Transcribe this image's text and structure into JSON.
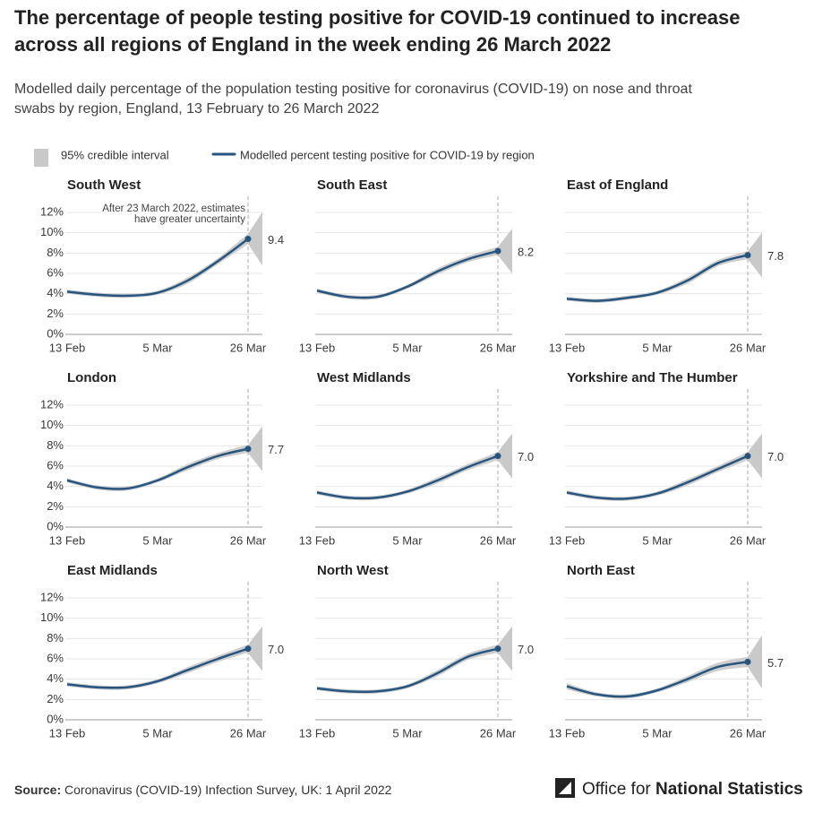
{
  "header": {
    "title": [
      "The percentage of people testing positive for COVID-19 continued to increase",
      "across all regions of England in the week ending 26 March 2022"
    ],
    "subtitle": [
      "Modelled daily percentage of the population testing positive for coronavirus (COVID-19) on nose and throat",
      "swabs by region, England, 13 February to 26 March 2022"
    ]
  },
  "legend": {
    "interval": "95% credible interval",
    "line": "Modelled percent testing positive for COVID-19 by region"
  },
  "footer": {
    "source_label": "Source:",
    "source": "Coronavirus (COVID-19) Infection Survey, UK: 1 April 2022",
    "logo_light": "Office for",
    "logo_bold": "National Statistics"
  },
  "chart_data": [
    {
      "type": "line",
      "title": "South West",
      "categories": [
        "13 Feb",
        null,
        null,
        "5 Mar",
        null,
        null,
        "26 Mar"
      ],
      "values": [
        4.2,
        3.9,
        3.8,
        4.1,
        5.3,
        7.2,
        9.4
      ],
      "value_labels": [
        null,
        null,
        null,
        null,
        null,
        null,
        "9.4"
      ],
      "lower": [
        4.0,
        3.7,
        3.6,
        3.9,
        5.0,
        6.9,
        8.9
      ],
      "upper": [
        4.4,
        4.1,
        4.0,
        4.3,
        5.6,
        7.5,
        9.9
      ],
      "color": "#27557f",
      "interval_color": "#c9c9c9",
      "ylim": [
        0,
        12
      ],
      "yticks": [
        {
          "value": 0,
          "label": "0%"
        },
        {
          "value": 2,
          "label": "2%"
        },
        {
          "value": 4,
          "label": "4%"
        },
        {
          "value": 6,
          "label": "6%"
        },
        {
          "value": 8,
          "label": "8%"
        },
        {
          "value": 10,
          "label": "10%"
        },
        {
          "value": 12,
          "label": "12%"
        }
      ],
      "annotation": [
        "After 23 March 2022, estimates",
        "have greater uncertainty"
      ]
    },
    {
      "type": "line",
      "title": "South East",
      "categories": [
        "13 Feb",
        null,
        null,
        "5 Mar",
        null,
        null,
        "26 Mar"
      ],
      "values": [
        4.3,
        3.7,
        3.7,
        4.7,
        6.2,
        7.4,
        8.2
      ],
      "value_labels": [
        null,
        null,
        null,
        null,
        null,
        null,
        "8.2"
      ],
      "lower": [
        4.1,
        3.5,
        3.5,
        4.5,
        5.9,
        7.1,
        7.8
      ],
      "upper": [
        4.5,
        3.9,
        3.9,
        4.9,
        6.5,
        7.7,
        8.6
      ],
      "color": "#27557f",
      "interval_color": "#c9c9c9",
      "ylim": [
        0,
        12
      ],
      "yticks": [
        0,
        2,
        4,
        6,
        8,
        10,
        12
      ]
    },
    {
      "type": "line",
      "title": "East of England",
      "categories": [
        "13 Feb",
        null,
        null,
        "5 Mar",
        null,
        null,
        "26 Mar"
      ],
      "values": [
        3.5,
        3.3,
        3.6,
        4.1,
        5.3,
        7.0,
        7.8
      ],
      "value_labels": [
        null,
        null,
        null,
        null,
        null,
        null,
        "7.8"
      ],
      "lower": [
        3.3,
        3.1,
        3.4,
        3.9,
        5.0,
        6.7,
        7.4
      ],
      "upper": [
        3.7,
        3.5,
        3.8,
        4.3,
        5.6,
        7.3,
        8.2
      ],
      "color": "#27557f",
      "interval_color": "#c9c9c9",
      "ylim": [
        0,
        12
      ],
      "yticks": [
        0,
        2,
        4,
        6,
        8,
        10,
        12
      ]
    },
    {
      "type": "line",
      "title": "London",
      "categories": [
        "13 Feb",
        null,
        null,
        "5 Mar",
        null,
        null,
        "26 Mar"
      ],
      "values": [
        4.6,
        3.9,
        3.8,
        4.6,
        5.9,
        7.0,
        7.7
      ],
      "value_labels": [
        null,
        null,
        null,
        null,
        null,
        null,
        "7.7"
      ],
      "lower": [
        4.4,
        3.7,
        3.6,
        4.4,
        5.6,
        6.7,
        7.3
      ],
      "upper": [
        4.8,
        4.1,
        4.0,
        4.8,
        6.2,
        7.3,
        8.1
      ],
      "color": "#27557f",
      "interval_color": "#c9c9c9",
      "ylim": [
        0,
        12
      ],
      "yticks": [
        {
          "value": 0,
          "label": "0%"
        },
        {
          "value": 2,
          "label": "2%"
        },
        {
          "value": 4,
          "label": "4%"
        },
        {
          "value": 6,
          "label": "6%"
        },
        {
          "value": 8,
          "label": "8%"
        },
        {
          "value": 10,
          "label": "10%"
        },
        {
          "value": 12,
          "label": "12%"
        }
      ]
    },
    {
      "type": "line",
      "title": "West Midlands",
      "categories": [
        "13 Feb",
        null,
        null,
        "5 Mar",
        null,
        null,
        "26 Mar"
      ],
      "values": [
        3.4,
        2.9,
        2.9,
        3.5,
        4.6,
        5.9,
        7.0
      ],
      "value_labels": [
        null,
        null,
        null,
        null,
        null,
        null,
        "7.0"
      ],
      "lower": [
        3.2,
        2.7,
        2.7,
        3.3,
        4.3,
        5.6,
        6.6
      ],
      "upper": [
        3.6,
        3.1,
        3.1,
        3.7,
        4.9,
        6.2,
        7.4
      ],
      "color": "#27557f",
      "interval_color": "#c9c9c9",
      "ylim": [
        0,
        12
      ],
      "yticks": [
        0,
        2,
        4,
        6,
        8,
        10,
        12
      ]
    },
    {
      "type": "line",
      "title": "Yorkshire and The Humber",
      "categories": [
        "13 Feb",
        null,
        null,
        "5 Mar",
        null,
        null,
        "26 Mar"
      ],
      "values": [
        3.4,
        2.9,
        2.8,
        3.3,
        4.4,
        5.7,
        7.0
      ],
      "value_labels": [
        null,
        null,
        null,
        null,
        null,
        null,
        "7.0"
      ],
      "lower": [
        3.2,
        2.7,
        2.6,
        3.1,
        4.1,
        5.4,
        6.6
      ],
      "upper": [
        3.6,
        3.1,
        3.0,
        3.5,
        4.7,
        6.0,
        7.4
      ],
      "color": "#27557f",
      "interval_color": "#c9c9c9",
      "ylim": [
        0,
        12
      ],
      "yticks": [
        0,
        2,
        4,
        6,
        8,
        10,
        12
      ]
    },
    {
      "type": "line",
      "title": "East Midlands",
      "categories": [
        "13 Feb",
        null,
        null,
        "5 Mar",
        null,
        null,
        "26 Mar"
      ],
      "values": [
        3.5,
        3.2,
        3.2,
        3.8,
        4.9,
        6.0,
        7.0
      ],
      "value_labels": [
        null,
        null,
        null,
        null,
        null,
        null,
        "7.0"
      ],
      "lower": [
        3.3,
        3.0,
        3.0,
        3.6,
        4.6,
        5.7,
        6.6
      ],
      "upper": [
        3.7,
        3.4,
        3.4,
        4.0,
        5.2,
        6.3,
        7.4
      ],
      "color": "#27557f",
      "interval_color": "#c9c9c9",
      "ylim": [
        0,
        12
      ],
      "yticks": [
        {
          "value": 0,
          "label": "0%"
        },
        {
          "value": 2,
          "label": "2%"
        },
        {
          "value": 4,
          "label": "4%"
        },
        {
          "value": 6,
          "label": "6%"
        },
        {
          "value": 8,
          "label": "8%"
        },
        {
          "value": 10,
          "label": "10%"
        },
        {
          "value": 12,
          "label": "12%"
        }
      ]
    },
    {
      "type": "line",
      "title": "North West",
      "categories": [
        "13 Feb",
        null,
        null,
        "5 Mar",
        null,
        null,
        "26 Mar"
      ],
      "values": [
        3.1,
        2.8,
        2.8,
        3.3,
        4.6,
        6.2,
        7.0
      ],
      "value_labels": [
        null,
        null,
        null,
        null,
        null,
        null,
        "7.0"
      ],
      "lower": [
        2.9,
        2.6,
        2.6,
        3.1,
        4.3,
        5.9,
        6.6
      ],
      "upper": [
        3.3,
        3.0,
        3.0,
        3.5,
        4.9,
        6.5,
        7.4
      ],
      "color": "#27557f",
      "interval_color": "#c9c9c9",
      "ylim": [
        0,
        12
      ],
      "yticks": [
        0,
        2,
        4,
        6,
        8,
        10,
        12
      ]
    },
    {
      "type": "line",
      "title": "North East",
      "categories": [
        "13 Feb",
        null,
        null,
        "5 Mar",
        null,
        null,
        "26 Mar"
      ],
      "values": [
        3.3,
        2.5,
        2.3,
        2.9,
        4.0,
        5.2,
        5.7
      ],
      "value_labels": [
        null,
        null,
        null,
        null,
        null,
        null,
        "5.7"
      ],
      "lower": [
        3.0,
        2.3,
        2.1,
        2.7,
        3.7,
        4.8,
        5.2
      ],
      "upper": [
        3.6,
        2.7,
        2.5,
        3.1,
        4.3,
        5.6,
        6.2
      ],
      "color": "#27557f",
      "interval_color": "#c9c9c9",
      "ylim": [
        0,
        12
      ],
      "yticks": [
        0,
        2,
        4,
        6,
        8,
        10,
        12
      ]
    }
  ]
}
